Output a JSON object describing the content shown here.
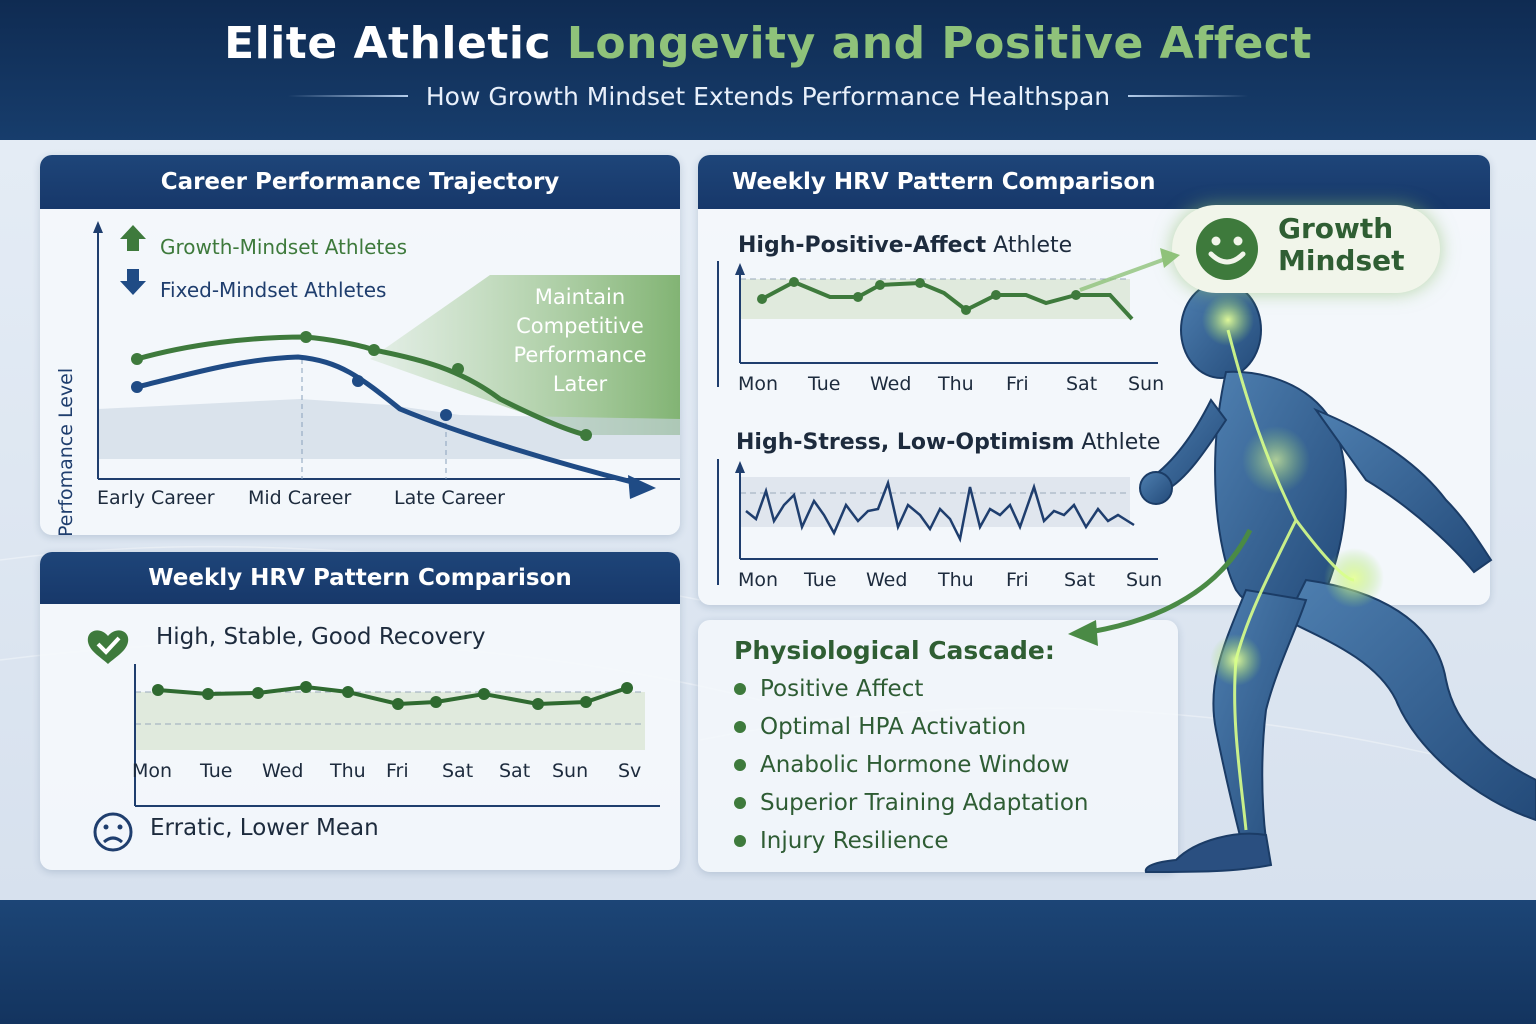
{
  "header": {
    "title_main": "Elite Athletic",
    "title_accent": "Longevity and Positive Affect",
    "subtitle": "How Growth Mindset Extends Performance Healthspan"
  },
  "career": {
    "heading": "Career Performance Trajectory",
    "legend_growth": "Growth-Mindset Athletes",
    "legend_fixed": "Fixed-Mindset Athletes",
    "y_axis": "Perfomance Level",
    "x_labels": [
      "Early Career",
      "Mid Career",
      "Late Career"
    ],
    "annotation": [
      "Maintain",
      "Competitive",
      "Performance",
      "Later"
    ]
  },
  "hrv_left": {
    "heading": "Weekly HRV Pattern Comparison",
    "label_high": "High, Stable, Good Recovery",
    "days": [
      "Mon",
      "Tue",
      "Wed",
      "Thu",
      "Fri",
      "Sat",
      "Sat",
      "Sun",
      "Sv"
    ],
    "label_low": "Erratic, Lower Mean"
  },
  "hrv_right": {
    "heading": "Weekly HRV Pattern Comparison",
    "athlete_a_strong": "High-Positive-Affect",
    "athlete_a_rest": "Athlete",
    "athlete_b_strong": "High-Stress, Low-Optimism",
    "athlete_b_rest": "Athlete",
    "days": [
      "Mon",
      "Tue",
      "Wed",
      "Thu",
      "Fri",
      "Sat",
      "Sun"
    ]
  },
  "bubble": {
    "line1": "Growth",
    "line2": "Mindset"
  },
  "cascade": {
    "title": "Physiological Cascade:",
    "items": [
      "Positive Affect",
      "Optimal HPA Activation",
      "Anabolic Hormone Window",
      "Superior Training Adaptation",
      "Injury Resilience"
    ]
  },
  "colors": {
    "navy": "#1e4579",
    "green": "#3e7a3c",
    "light_green": "#8fc27a"
  }
}
